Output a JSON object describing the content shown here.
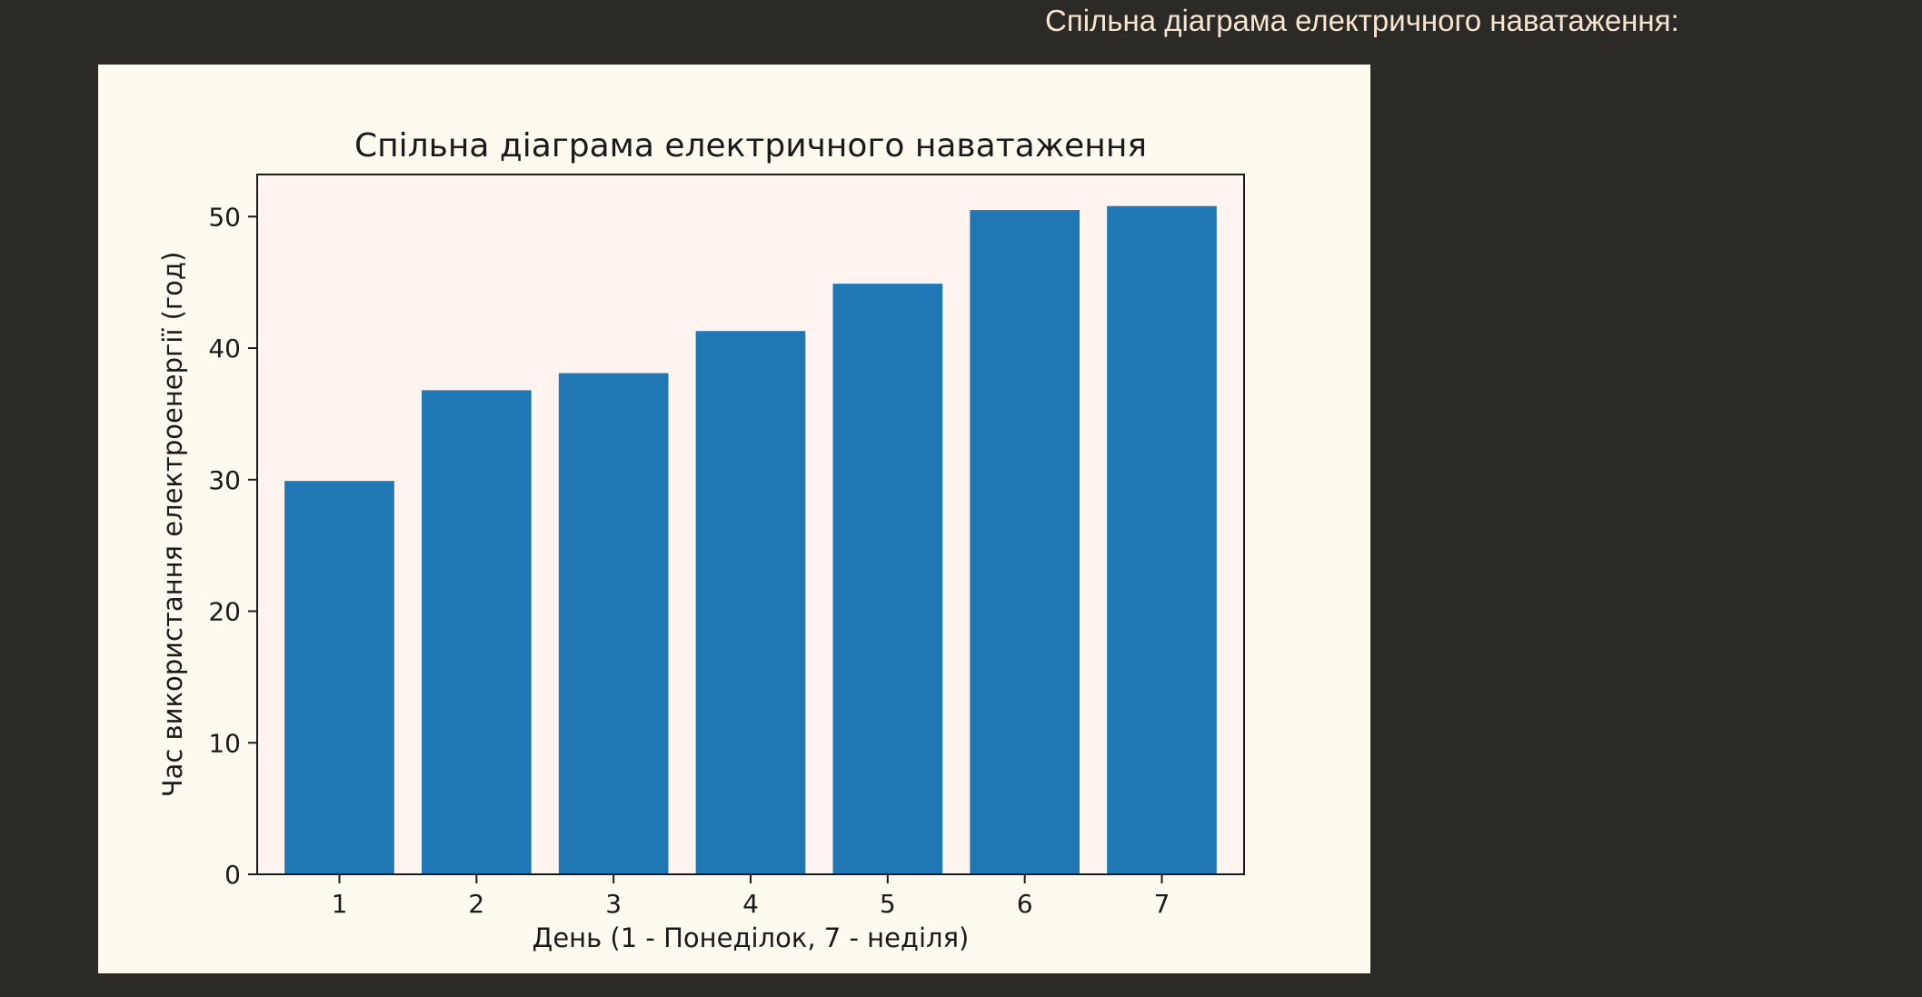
{
  "heading": "Спільна діаграма електричного наватаження:",
  "chart_data": {
    "type": "bar",
    "title": "Спільна діаграма електричного наватаження",
    "xlabel": "День (1 - Понеділок, 7 - неділя)",
    "ylabel": "Час використання електроенергії (год)",
    "categories": [
      "1",
      "2",
      "3",
      "4",
      "5",
      "6",
      "7"
    ],
    "values": [
      29.9,
      36.8,
      38.1,
      41.3,
      44.9,
      50.5,
      50.8
    ],
    "ylim": [
      0,
      53.2
    ],
    "yticks": [
      0,
      10,
      20,
      30,
      40,
      50
    ],
    "grid": false,
    "bar_color": "#1f77b4",
    "plot_background": "#fff4ef",
    "figure_background": "#fffaef"
  }
}
